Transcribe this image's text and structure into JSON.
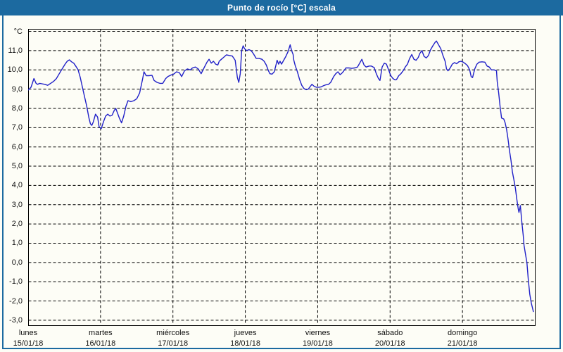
{
  "window": {
    "title": "Punto de rocío [°C] escala"
  },
  "colors": {
    "titlebar": "#1c6aa0",
    "frame": "#1c6aa0",
    "plot_border": "#000000",
    "grid": "#000000",
    "series_line": "#2020c8",
    "background": "#fdfdf6",
    "text": "#111111"
  },
  "chart_data": {
    "type": "line",
    "title": "Punto de rocío [°C] escala",
    "ylabel": "°C",
    "xlabel": "",
    "grid": "dashed",
    "legend_position": "none",
    "y_axis": {
      "min": -3.0,
      "max": 12.0,
      "step": 1.0,
      "ticks": [
        {
          "value": 12,
          "label": "°C"
        },
        {
          "value": 11,
          "label": "11,0"
        },
        {
          "value": 10,
          "label": "10,0"
        },
        {
          "value": 9,
          "label": "9,0"
        },
        {
          "value": 8,
          "label": "8,0"
        },
        {
          "value": 7,
          "label": "7,0"
        },
        {
          "value": 6,
          "label": "6,0"
        },
        {
          "value": 5,
          "label": "5,0"
        },
        {
          "value": 4,
          "label": "4,0"
        },
        {
          "value": 3,
          "label": "3,0"
        },
        {
          "value": 2,
          "label": "2,0"
        },
        {
          "value": 1,
          "label": "1,0"
        },
        {
          "value": 0,
          "label": "0,0"
        },
        {
          "value": -1,
          "label": "-1,0"
        },
        {
          "value": -2,
          "label": "-2,0"
        },
        {
          "value": -3,
          "label": "-3,0"
        }
      ]
    },
    "x_axis": {
      "span_days": 7,
      "days": [
        {
          "weekday": "lunes",
          "date": "15/01/18"
        },
        {
          "weekday": "martes",
          "date": "16/01/18"
        },
        {
          "weekday": "miércoles",
          "date": "17/01/18"
        },
        {
          "weekday": "jueves",
          "date": "18/01/18"
        },
        {
          "weekday": "viernes",
          "date": "19/01/18"
        },
        {
          "weekday": "sábado",
          "date": "20/01/18"
        },
        {
          "weekday": "domingo",
          "date": "21/01/18"
        }
      ]
    },
    "series": [
      {
        "name": "Punto de rocío",
        "unit": "°C",
        "color": "#2020c8",
        "points": [
          [
            0.0,
            8.95
          ],
          [
            0.04,
            9.1
          ],
          [
            0.08,
            9.55
          ],
          [
            0.11,
            9.3
          ],
          [
            0.13,
            9.25
          ],
          [
            0.16,
            9.3
          ],
          [
            0.19,
            9.28
          ],
          [
            0.23,
            9.25
          ],
          [
            0.27,
            9.2
          ],
          [
            0.31,
            9.3
          ],
          [
            0.35,
            9.4
          ],
          [
            0.39,
            9.55
          ],
          [
            0.43,
            9.8
          ],
          [
            0.47,
            10.05
          ],
          [
            0.51,
            10.3
          ],
          [
            0.54,
            10.45
          ],
          [
            0.57,
            10.52
          ],
          [
            0.6,
            10.42
          ],
          [
            0.63,
            10.35
          ],
          [
            0.66,
            10.18
          ],
          [
            0.69,
            10.0
          ],
          [
            0.72,
            9.6
          ],
          [
            0.75,
            9.1
          ],
          [
            0.78,
            8.6
          ],
          [
            0.81,
            8.1
          ],
          [
            0.84,
            7.5
          ],
          [
            0.86,
            7.2
          ],
          [
            0.88,
            7.12
          ],
          [
            0.9,
            7.3
          ],
          [
            0.93,
            7.7
          ],
          [
            0.96,
            7.55
          ],
          [
            0.98,
            7.05
          ],
          [
            1.01,
            6.95
          ],
          [
            1.04,
            7.3
          ],
          [
            1.07,
            7.6
          ],
          [
            1.1,
            7.7
          ],
          [
            1.13,
            7.6
          ],
          [
            1.16,
            7.65
          ],
          [
            1.19,
            7.9
          ],
          [
            1.21,
            8.0
          ],
          [
            1.23,
            7.8
          ],
          [
            1.26,
            7.5
          ],
          [
            1.29,
            7.25
          ],
          [
            1.32,
            7.6
          ],
          [
            1.35,
            8.1
          ],
          [
            1.38,
            8.4
          ],
          [
            1.42,
            8.35
          ],
          [
            1.46,
            8.4
          ],
          [
            1.5,
            8.5
          ],
          [
            1.54,
            8.8
          ],
          [
            1.58,
            9.5
          ],
          [
            1.6,
            9.9
          ],
          [
            1.63,
            9.7
          ],
          [
            1.67,
            9.7
          ],
          [
            1.71,
            9.72
          ],
          [
            1.74,
            9.45
          ],
          [
            1.78,
            9.35
          ],
          [
            1.82,
            9.3
          ],
          [
            1.86,
            9.3
          ],
          [
            1.9,
            9.55
          ],
          [
            1.93,
            9.65
          ],
          [
            1.97,
            9.73
          ],
          [
            2.01,
            9.78
          ],
          [
            2.05,
            9.9
          ],
          [
            2.09,
            9.85
          ],
          [
            2.12,
            9.65
          ],
          [
            2.16,
            9.95
          ],
          [
            2.2,
            10.05
          ],
          [
            2.24,
            10.0
          ],
          [
            2.27,
            10.1
          ],
          [
            2.31,
            10.15
          ],
          [
            2.35,
            10.05
          ],
          [
            2.39,
            9.8
          ],
          [
            2.43,
            10.1
          ],
          [
            2.47,
            10.4
          ],
          [
            2.5,
            10.55
          ],
          [
            2.53,
            10.35
          ],
          [
            2.56,
            10.45
          ],
          [
            2.59,
            10.3
          ],
          [
            2.62,
            10.25
          ],
          [
            2.64,
            10.45
          ],
          [
            2.67,
            10.55
          ],
          [
            2.7,
            10.65
          ],
          [
            2.74,
            10.78
          ],
          [
            2.78,
            10.75
          ],
          [
            2.82,
            10.72
          ],
          [
            2.86,
            10.5
          ],
          [
            2.89,
            9.6
          ],
          [
            2.91,
            9.35
          ],
          [
            2.93,
            9.8
          ],
          [
            2.95,
            11.0
          ],
          [
            2.97,
            11.25
          ],
          [
            2.99,
            11.1
          ],
          [
            3.02,
            11.0
          ],
          [
            3.05,
            11.05
          ],
          [
            3.08,
            11.0
          ],
          [
            3.11,
            10.85
          ],
          [
            3.15,
            10.6
          ],
          [
            3.19,
            10.6
          ],
          [
            3.23,
            10.55
          ],
          [
            3.26,
            10.45
          ],
          [
            3.29,
            10.25
          ],
          [
            3.32,
            9.95
          ],
          [
            3.34,
            9.8
          ],
          [
            3.37,
            9.78
          ],
          [
            3.4,
            9.9
          ],
          [
            3.42,
            10.2
          ],
          [
            3.44,
            10.5
          ],
          [
            3.46,
            10.3
          ],
          [
            3.48,
            10.45
          ],
          [
            3.5,
            10.3
          ],
          [
            3.53,
            10.5
          ],
          [
            3.56,
            10.7
          ],
          [
            3.59,
            10.95
          ],
          [
            3.62,
            11.3
          ],
          [
            3.64,
            11.0
          ],
          [
            3.66,
            10.8
          ],
          [
            3.67,
            10.5
          ],
          [
            3.69,
            10.22
          ],
          [
            3.72,
            9.9
          ],
          [
            3.75,
            9.5
          ],
          [
            3.78,
            9.2
          ],
          [
            3.81,
            9.03
          ],
          [
            3.84,
            8.97
          ],
          [
            3.87,
            9.0
          ],
          [
            3.9,
            9.15
          ],
          [
            3.92,
            9.25
          ],
          [
            3.95,
            9.15
          ],
          [
            3.98,
            9.1
          ],
          [
            4.02,
            9.1
          ],
          [
            4.05,
            9.12
          ],
          [
            4.08,
            9.18
          ],
          [
            4.11,
            9.22
          ],
          [
            4.15,
            9.25
          ],
          [
            4.18,
            9.35
          ],
          [
            4.22,
            9.65
          ],
          [
            4.25,
            9.8
          ],
          [
            4.28,
            9.9
          ],
          [
            4.31,
            9.75
          ],
          [
            4.34,
            9.85
          ],
          [
            4.37,
            10.0
          ],
          [
            4.39,
            10.1
          ],
          [
            4.43,
            10.1
          ],
          [
            4.47,
            10.08
          ],
          [
            4.51,
            10.1
          ],
          [
            4.55,
            10.15
          ],
          [
            4.58,
            10.35
          ],
          [
            4.61,
            10.55
          ],
          [
            4.64,
            10.25
          ],
          [
            4.67,
            10.15
          ],
          [
            4.71,
            10.2
          ],
          [
            4.74,
            10.2
          ],
          [
            4.78,
            10.12
          ],
          [
            4.81,
            9.8
          ],
          [
            4.84,
            9.55
          ],
          [
            4.86,
            9.45
          ],
          [
            4.89,
            10.15
          ],
          [
            4.92,
            10.35
          ],
          [
            4.95,
            10.3
          ],
          [
            4.98,
            10.0
          ],
          [
            5.01,
            9.7
          ],
          [
            5.04,
            9.55
          ],
          [
            5.07,
            9.48
          ],
          [
            5.09,
            9.5
          ],
          [
            5.12,
            9.7
          ],
          [
            5.15,
            9.8
          ],
          [
            5.18,
            9.95
          ],
          [
            5.21,
            10.15
          ],
          [
            5.24,
            10.3
          ],
          [
            5.27,
            10.6
          ],
          [
            5.3,
            10.8
          ],
          [
            5.33,
            10.55
          ],
          [
            5.36,
            10.5
          ],
          [
            5.39,
            10.65
          ],
          [
            5.41,
            10.85
          ],
          [
            5.44,
            11.0
          ],
          [
            5.47,
            10.7
          ],
          [
            5.5,
            10.62
          ],
          [
            5.53,
            10.75
          ],
          [
            5.56,
            11.05
          ],
          [
            5.59,
            11.25
          ],
          [
            5.62,
            11.42
          ],
          [
            5.64,
            11.5
          ],
          [
            5.67,
            11.3
          ],
          [
            5.7,
            11.1
          ],
          [
            5.73,
            10.75
          ],
          [
            5.76,
            10.45
          ],
          [
            5.78,
            10.05
          ],
          [
            5.8,
            9.95
          ],
          [
            5.83,
            10.1
          ],
          [
            5.86,
            10.3
          ],
          [
            5.89,
            10.38
          ],
          [
            5.92,
            10.32
          ],
          [
            5.95,
            10.42
          ],
          [
            5.98,
            10.45
          ],
          [
            6.01,
            10.4
          ],
          [
            6.04,
            10.32
          ],
          [
            6.07,
            10.22
          ],
          [
            6.1,
            10.0
          ],
          [
            6.12,
            9.65
          ],
          [
            6.14,
            9.6
          ],
          [
            6.17,
            10.05
          ],
          [
            6.2,
            10.3
          ],
          [
            6.23,
            10.4
          ],
          [
            6.27,
            10.42
          ],
          [
            6.31,
            10.4
          ],
          [
            6.34,
            10.2
          ],
          [
            6.37,
            10.15
          ],
          [
            6.4,
            10.0
          ],
          [
            6.44,
            10.0
          ],
          [
            6.47,
            9.95
          ],
          [
            6.48,
            9.4
          ],
          [
            6.5,
            8.8
          ],
          [
            6.52,
            8.1
          ],
          [
            6.54,
            7.5
          ],
          [
            6.57,
            7.45
          ],
          [
            6.59,
            7.25
          ],
          [
            6.61,
            6.9
          ],
          [
            6.63,
            6.4
          ],
          [
            6.65,
            5.8
          ],
          [
            6.67,
            5.3
          ],
          [
            6.69,
            4.7
          ],
          [
            6.71,
            4.3
          ],
          [
            6.73,
            3.9
          ],
          [
            6.75,
            3.3
          ],
          [
            6.77,
            2.8
          ],
          [
            6.78,
            2.6
          ],
          [
            6.8,
            2.95
          ],
          [
            6.82,
            2.1
          ],
          [
            6.84,
            1.4
          ],
          [
            6.85,
            0.9
          ],
          [
            6.87,
            0.45
          ],
          [
            6.89,
            0.0
          ],
          [
            6.91,
            -0.9
          ],
          [
            6.93,
            -1.65
          ],
          [
            6.95,
            -2.1
          ],
          [
            6.97,
            -2.4
          ],
          [
            6.98,
            -2.55
          ]
        ]
      }
    ]
  }
}
